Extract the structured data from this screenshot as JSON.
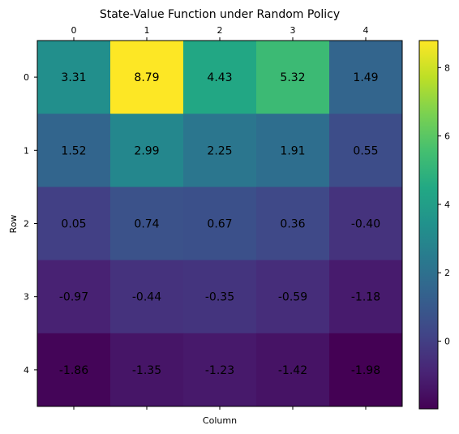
{
  "chart_data": {
    "type": "heatmap",
    "title": "State-Value Function under Random Policy",
    "xlabel": "Column",
    "ylabel": "Row",
    "x_ticks": [
      "0",
      "1",
      "2",
      "3",
      "4"
    ],
    "y_ticks": [
      "0",
      "1",
      "2",
      "3",
      "4"
    ],
    "x_tick_position": "top",
    "values": [
      [
        3.31,
        8.79,
        4.43,
        5.32,
        1.49
      ],
      [
        1.52,
        2.99,
        2.25,
        1.91,
        0.55
      ],
      [
        0.05,
        0.74,
        0.67,
        0.36,
        -0.4
      ],
      [
        -0.97,
        -0.44,
        -0.35,
        -0.59,
        -1.18
      ],
      [
        -1.86,
        -1.35,
        -1.23,
        -1.42,
        -1.98
      ]
    ],
    "labels": [
      [
        "3.31",
        "8.79",
        "4.43",
        "5.32",
        "1.49"
      ],
      [
        "1.52",
        "2.99",
        "2.25",
        "1.91",
        "0.55"
      ],
      [
        "0.05",
        "0.74",
        "0.67",
        "0.36",
        "-0.40"
      ],
      [
        "-0.97",
        "-0.44",
        "-0.35",
        "-0.59",
        "-1.18"
      ],
      [
        "-1.86",
        "-1.35",
        "-1.23",
        "-1.42",
        "-1.98"
      ]
    ],
    "colormap": "viridis",
    "vmin": -1.98,
    "vmax": 8.79,
    "colorbar_ticks": [
      "0",
      "2",
      "4",
      "6",
      "8"
    ],
    "grid": false,
    "legend": "colorbar-right"
  }
}
